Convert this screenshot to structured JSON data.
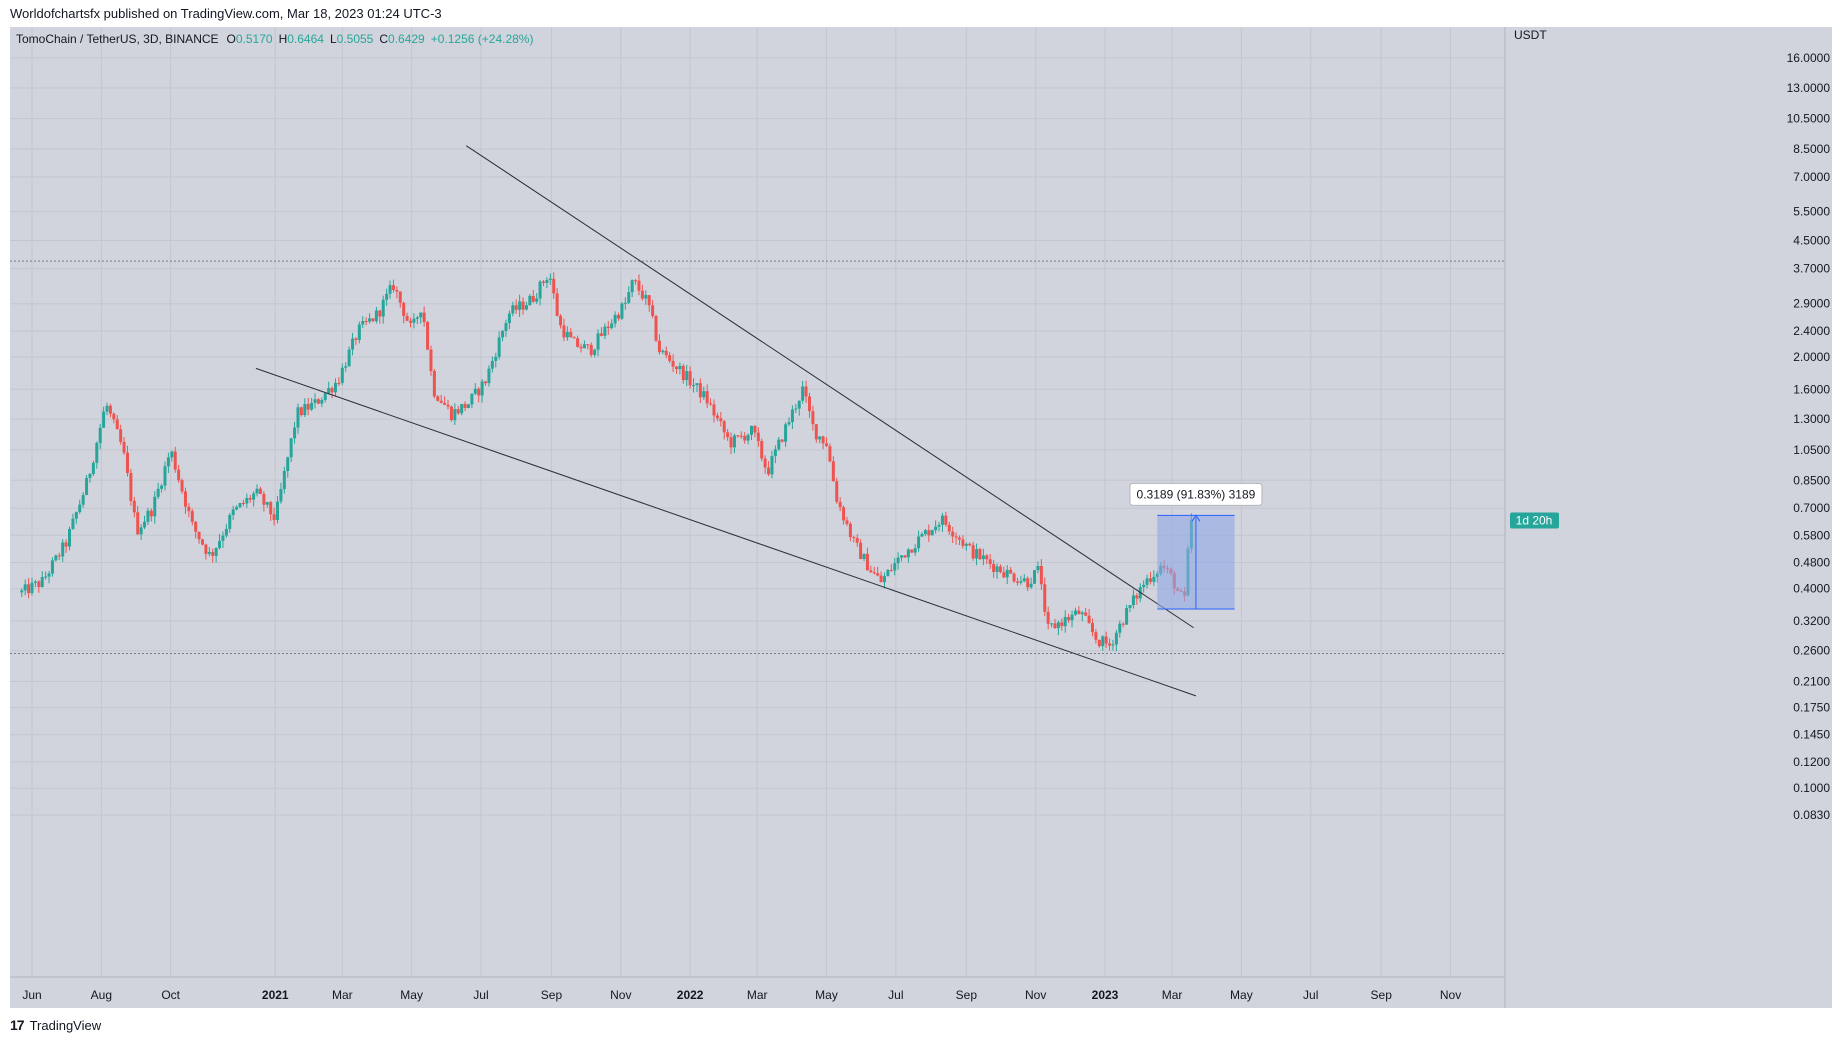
{
  "header": {
    "publisher_line": "Worldofchartsfx published on TradingView.com, Mar 18, 2023 01:24 UTC-3"
  },
  "footer": {
    "brand": "TradingView"
  },
  "colors": {
    "background": "#d1d4dc",
    "grid": "#c3c6cf",
    "up": "#26a69a",
    "down": "#ef5350",
    "trendline": "#2a2e39",
    "measure_fill": "#8fa6e6",
    "measure_stroke": "#2962ff",
    "price_badge": "#26a69a",
    "text": "#131722"
  },
  "legend": {
    "symbol": "TomoChain / TetherUS, 3D, BINANCE",
    "o_label": "O",
    "o_value": "0.5170",
    "h_label": "H",
    "h_value": "0.6464",
    "l_label": "L",
    "l_value": "0.5055",
    "c_label": "C",
    "c_value": "0.6429",
    "change": "+0.1256 (+24.28%)"
  },
  "chart_data": {
    "type": "candlestick",
    "title": "TomoChain / TetherUS, 3D, BINANCE",
    "scale": "log",
    "y_axis_unit": "USDT",
    "y_ticks": [
      "16.0000",
      "13.0000",
      "10.5000",
      "8.5000",
      "7.0000",
      "5.5000",
      "4.5000",
      "3.7000",
      "2.9000",
      "2.4000",
      "2.0000",
      "1.6000",
      "1.3000",
      "1.0500",
      "0.8500",
      "0.7000",
      "0.5800",
      "0.4800",
      "0.4000",
      "0.3200",
      "0.2600",
      "0.2100",
      "0.1750",
      "0.1450",
      "0.1200",
      "0.1000",
      "0.0830"
    ],
    "x_ticks": [
      {
        "label": "Jun",
        "date": "2020-06-01",
        "bold": false
      },
      {
        "label": "Aug",
        "date": "2020-08-01",
        "bold": false
      },
      {
        "label": "Oct",
        "date": "2020-10-01",
        "bold": false
      },
      {
        "label": "2021",
        "date": "2021-01-01",
        "bold": true
      },
      {
        "label": "Mar",
        "date": "2021-03-01",
        "bold": false
      },
      {
        "label": "May",
        "date": "2021-05-01",
        "bold": false
      },
      {
        "label": "Jul",
        "date": "2021-07-01",
        "bold": false
      },
      {
        "label": "Sep",
        "date": "2021-09-01",
        "bold": false
      },
      {
        "label": "Nov",
        "date": "2021-11-01",
        "bold": false
      },
      {
        "label": "2022",
        "date": "2022-01-01",
        "bold": true
      },
      {
        "label": "Mar",
        "date": "2022-03-01",
        "bold": false
      },
      {
        "label": "May",
        "date": "2022-05-01",
        "bold": false
      },
      {
        "label": "Jul",
        "date": "2022-07-01",
        "bold": false
      },
      {
        "label": "Sep",
        "date": "2022-09-01",
        "bold": false
      },
      {
        "label": "Nov",
        "date": "2022-11-01",
        "bold": false
      },
      {
        "label": "2023",
        "date": "2023-01-01",
        "bold": true
      },
      {
        "label": "Mar",
        "date": "2023-03-01",
        "bold": false
      },
      {
        "label": "May",
        "date": "2023-05-01",
        "bold": false
      },
      {
        "label": "Jul",
        "date": "2023-07-01",
        "bold": false
      },
      {
        "label": "Sep",
        "date": "2023-09-01",
        "bold": false
      },
      {
        "label": "Nov",
        "date": "2023-11-01",
        "bold": false
      }
    ],
    "price_path": [
      [
        "2020-05-23",
        0.39
      ],
      [
        "2020-06-10",
        0.42
      ],
      [
        "2020-07-01",
        0.55
      ],
      [
        "2020-07-20",
        0.85
      ],
      [
        "2020-08-05",
        1.45
      ],
      [
        "2020-08-20",
        1.05
      ],
      [
        "2020-09-01",
        0.6
      ],
      [
        "2020-09-15",
        0.7
      ],
      [
        "2020-10-01",
        1.05
      ],
      [
        "2020-10-20",
        0.62
      ],
      [
        "2020-11-05",
        0.5
      ],
      [
        "2020-11-25",
        0.68
      ],
      [
        "2020-12-15",
        0.78
      ],
      [
        "2021-01-01",
        0.65
      ],
      [
        "2021-01-20",
        1.35
      ],
      [
        "2021-02-05",
        1.45
      ],
      [
        "2021-02-25",
        1.7
      ],
      [
        "2021-03-15",
        2.4
      ],
      [
        "2021-04-01",
        2.7
      ],
      [
        "2021-04-15",
        3.3
      ],
      [
        "2021-05-01",
        2.4
      ],
      [
        "2021-05-10",
        2.9
      ],
      [
        "2021-05-20",
        1.6
      ],
      [
        "2021-06-05",
        1.35
      ],
      [
        "2021-06-20",
        1.45
      ],
      [
        "2021-07-05",
        1.7
      ],
      [
        "2021-07-25",
        2.7
      ],
      [
        "2021-08-15",
        3.0
      ],
      [
        "2021-08-30",
        3.6
      ],
      [
        "2021-09-08",
        2.5
      ],
      [
        "2021-09-20",
        2.2
      ],
      [
        "2021-10-05",
        2.1
      ],
      [
        "2021-10-25",
        2.6
      ],
      [
        "2021-11-05",
        2.9
      ],
      [
        "2021-11-12",
        3.4
      ],
      [
        "2021-11-25",
        2.9
      ],
      [
        "2021-12-05",
        2.1
      ],
      [
        "2021-12-25",
        1.8
      ],
      [
        "2022-01-15",
        1.5
      ],
      [
        "2022-02-05",
        1.1
      ],
      [
        "2022-02-25",
        1.2
      ],
      [
        "2022-03-10",
        0.9
      ],
      [
        "2022-03-25",
        1.2
      ],
      [
        "2022-04-10",
        1.6
      ],
      [
        "2022-04-20",
        1.2
      ],
      [
        "2022-05-01",
        1.1
      ],
      [
        "2022-05-10",
        0.75
      ],
      [
        "2022-05-25",
        0.55
      ],
      [
        "2022-06-10",
        0.45
      ],
      [
        "2022-06-18",
        0.42
      ],
      [
        "2022-07-05",
        0.5
      ],
      [
        "2022-07-25",
        0.58
      ],
      [
        "2022-08-10",
        0.65
      ],
      [
        "2022-08-20",
        0.6
      ],
      [
        "2022-09-05",
        0.52
      ],
      [
        "2022-09-25",
        0.47
      ],
      [
        "2022-10-10",
        0.44
      ],
      [
        "2022-10-25",
        0.42
      ],
      [
        "2022-11-05",
        0.46
      ],
      [
        "2022-11-10",
        0.3
      ],
      [
        "2022-11-25",
        0.32
      ],
      [
        "2022-12-10",
        0.34
      ],
      [
        "2022-12-25",
        0.28
      ],
      [
        "2023-01-05",
        0.27
      ],
      [
        "2023-01-20",
        0.34
      ],
      [
        "2023-02-05",
        0.42
      ],
      [
        "2023-02-20",
        0.47
      ],
      [
        "2023-03-01",
        0.43
      ],
      [
        "2023-03-08",
        0.38
      ],
      [
        "2023-03-12",
        0.37
      ],
      [
        "2023-03-15",
        0.51
      ],
      [
        "2023-03-18",
        0.6429
      ]
    ],
    "horizontal_levels": [
      3.9,
      0.255
    ],
    "trendlines": [
      {
        "from": [
          "2021-06-18",
          8.7
        ],
        "to": [
          "2023-03-20",
          0.305
        ]
      },
      {
        "from": [
          "2020-12-15",
          1.85
        ],
        "to": [
          "2023-03-22",
          0.19
        ]
      }
    ],
    "measure": {
      "label": "0.3189 (91.83%) 3189",
      "from_date": "2023-02-16",
      "to_date": "2023-04-25",
      "from_price": 0.3474,
      "to_price": 0.6663
    },
    "last_price_badge": {
      "label": "1d 20h",
      "price": 0.6429
    }
  }
}
